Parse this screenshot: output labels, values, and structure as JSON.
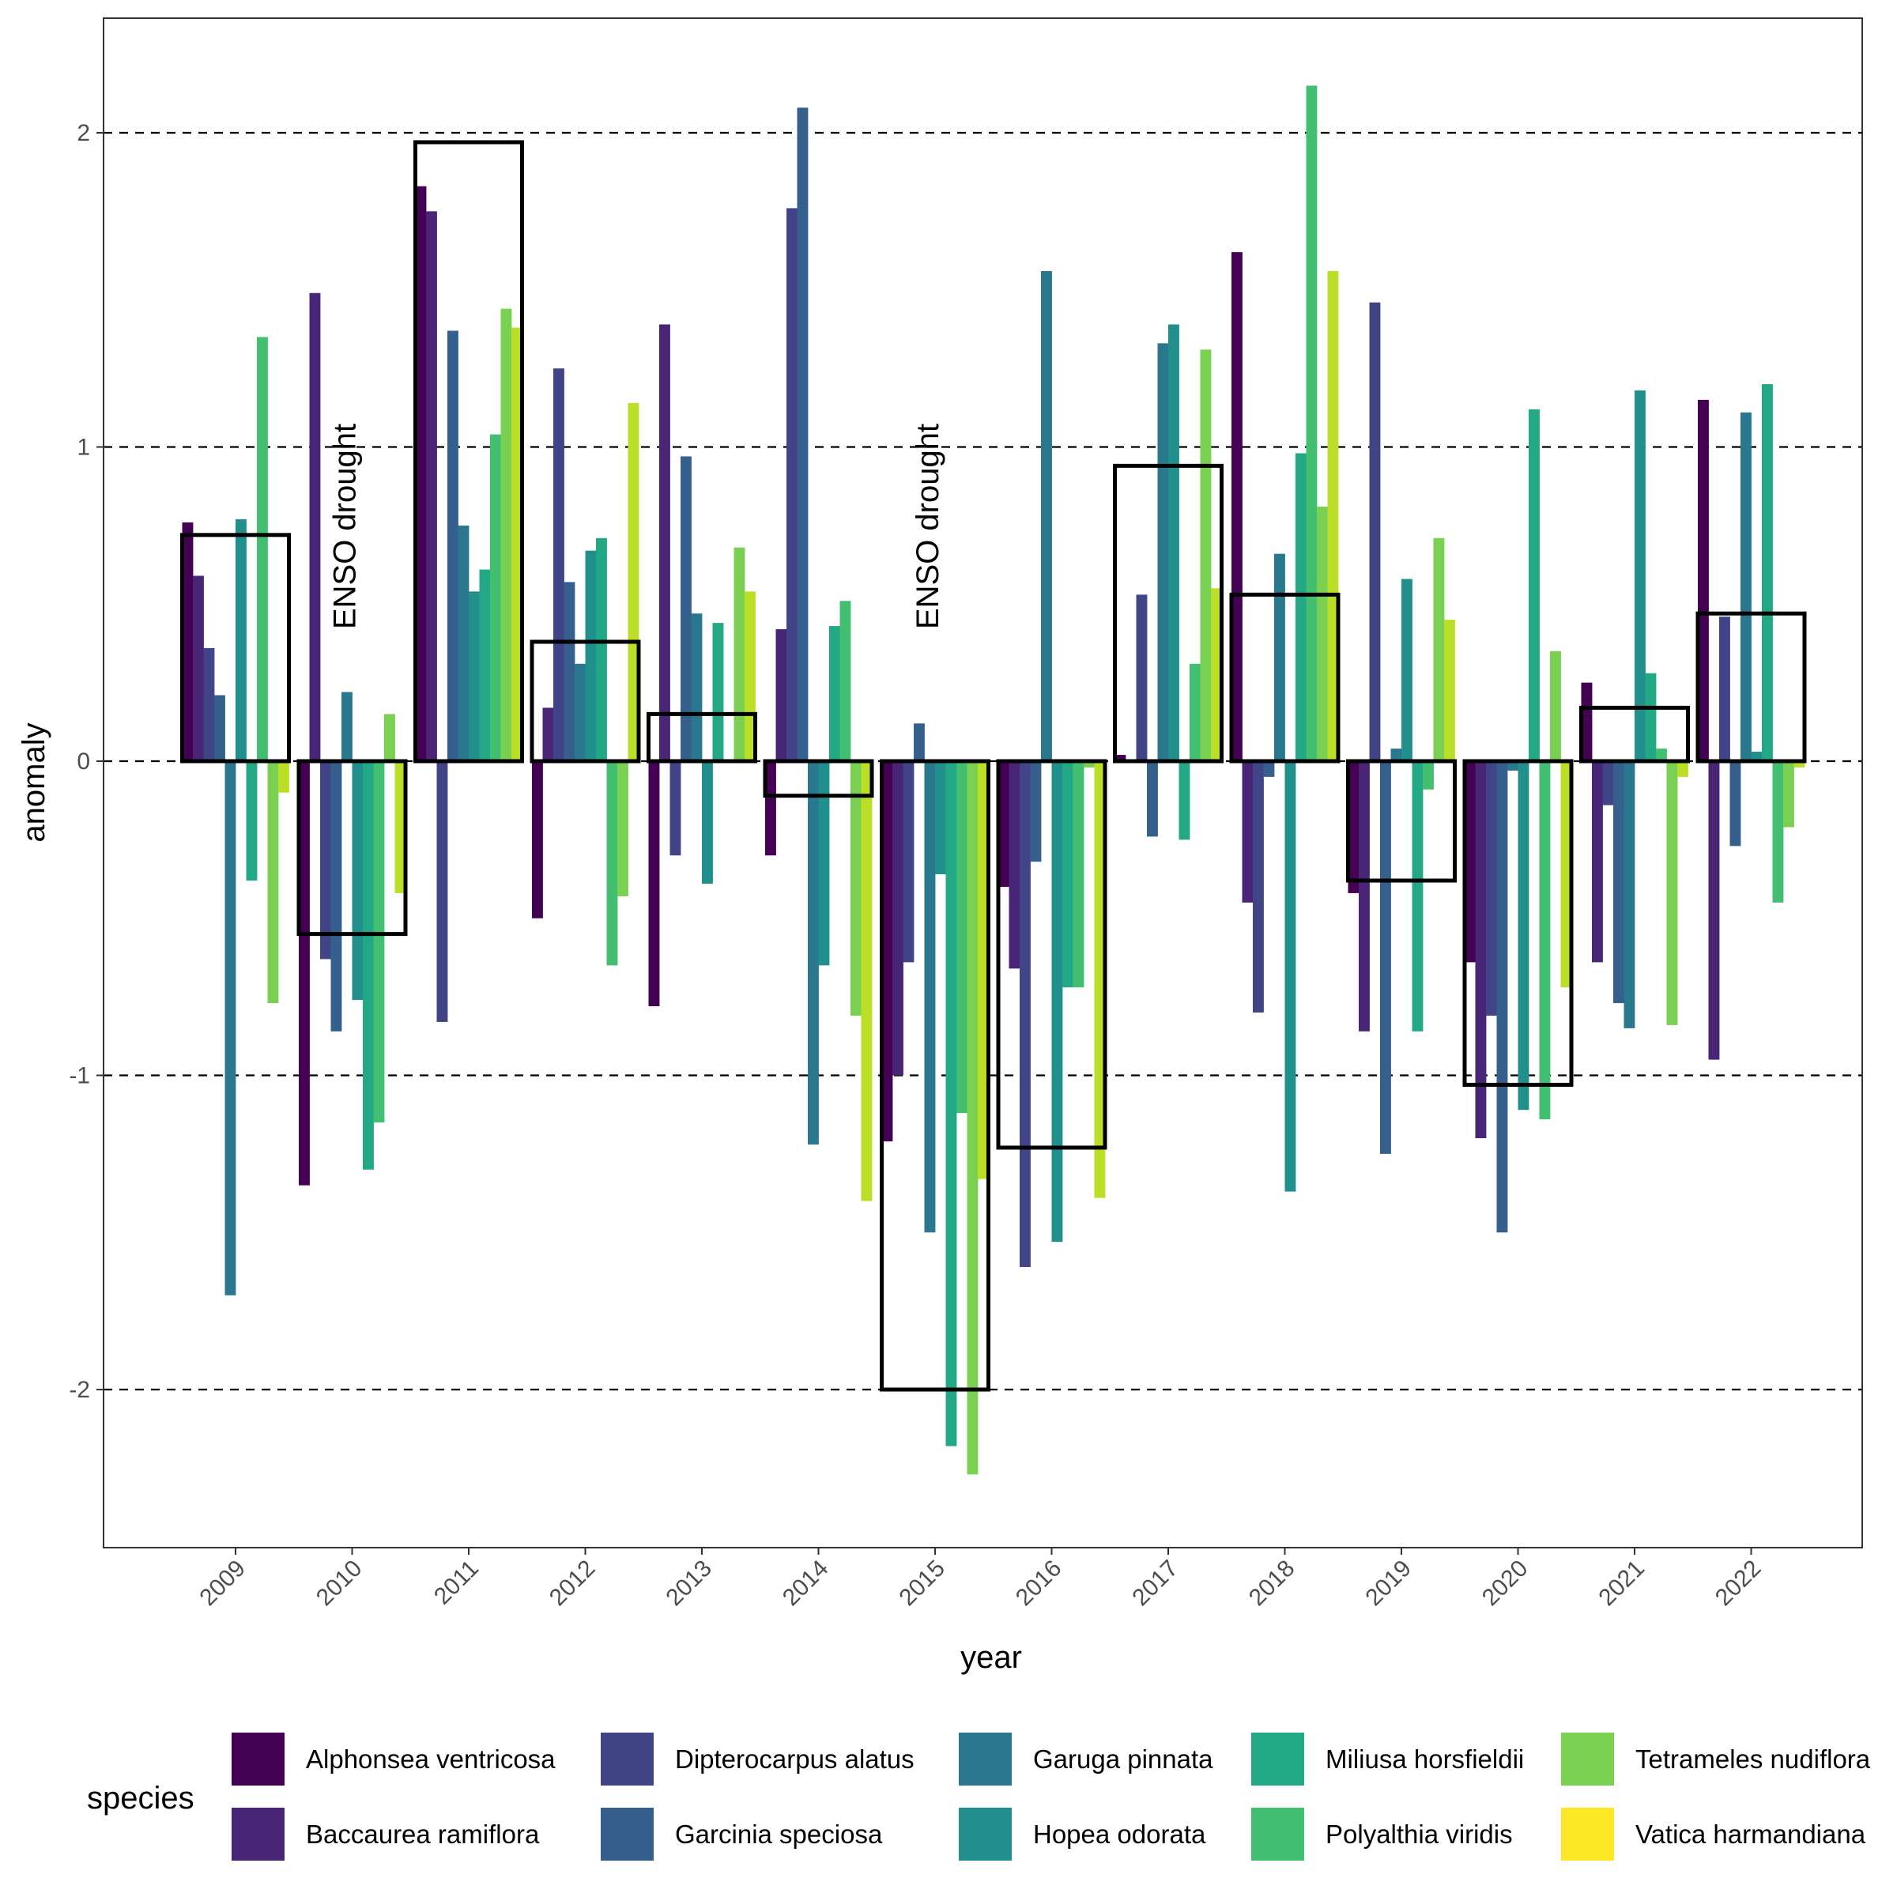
{
  "chart_data": {
    "type": "bar",
    "xlabel": "year",
    "ylabel": "anomaly",
    "ylim": [
      -2.5,
      2.35
    ],
    "yticks": [
      -2,
      -1,
      0,
      1,
      2
    ],
    "ytick_labels": [
      "-2",
      "-1",
      "0",
      "1",
      "2"
    ],
    "gridlines": "dashed at y = -2, -1, 0, 1, 2",
    "categories": [
      "2009",
      "2010",
      "2011",
      "2012",
      "2013",
      "2014",
      "2015",
      "2016",
      "2017",
      "2018",
      "2019",
      "2020",
      "2021",
      "2022"
    ],
    "legend_title": "species",
    "legend_position": "bottom",
    "series": [
      {
        "name": "Alphonsea ventricosa",
        "color": "#440154",
        "values": [
          0.76,
          -1.35,
          1.83,
          -0.5,
          -0.78,
          -0.3,
          -1.21,
          -0.4,
          0.02,
          1.62,
          -0.42,
          -0.64,
          0.25,
          1.15
        ]
      },
      {
        "name": "Baccaurea ramiflora",
        "color": "#482576",
        "values": [
          0.59,
          1.49,
          1.75,
          0.17,
          1.39,
          0.42,
          -1.0,
          -0.66,
          0.0,
          -0.45,
          -0.86,
          -1.2,
          -0.64,
          -0.95
        ]
      },
      {
        "name": "Dipterocarpus alatus",
        "color": "#414487",
        "values": [
          0.36,
          -0.63,
          -0.83,
          1.25,
          -0.3,
          1.76,
          -0.64,
          -1.61,
          0.53,
          -0.8,
          1.46,
          -0.81,
          -0.14,
          0.46
        ]
      },
      {
        "name": "Garcinia speciosa",
        "color": "#35608D",
        "values": [
          0.21,
          -0.86,
          1.37,
          0.57,
          0.97,
          2.08,
          0.12,
          -0.32,
          -0.24,
          -0.05,
          -1.25,
          -1.5,
          -0.77,
          -0.27
        ]
      },
      {
        "name": "Garuga pinnata",
        "color": "#2A788E",
        "values": [
          -1.7,
          0.22,
          0.75,
          0.31,
          0.47,
          -1.22,
          -1.5,
          1.56,
          1.33,
          0.66,
          0.04,
          -0.03,
          -0.85,
          1.11
        ]
      },
      {
        "name": "Hopea odorata",
        "color": "#21908C",
        "values": [
          0.77,
          -0.76,
          0.54,
          0.67,
          -0.39,
          -0.65,
          -0.36,
          -1.53,
          1.39,
          -1.37,
          0.58,
          -1.11,
          1.18,
          0.03
        ]
      },
      {
        "name": "Miliusa horsfieldii",
        "color": "#22A884",
        "values": [
          -0.38,
          -1.3,
          0.61,
          0.71,
          0.44,
          0.43,
          -2.18,
          -0.72,
          -0.25,
          0.98,
          -0.86,
          1.12,
          0.28,
          1.2
        ]
      },
      {
        "name": "Polyalthia viridis",
        "color": "#43BF71",
        "values": [
          1.35,
          -1.15,
          1.04,
          -0.65,
          0.0,
          0.51,
          -1.12,
          -0.72,
          0.31,
          2.15,
          -0.09,
          -1.14,
          0.04,
          -0.45
        ]
      },
      {
        "name": "Tetrameles nudiflora",
        "color": "#7AD151",
        "values": [
          -0.77,
          0.15,
          1.44,
          -0.43,
          0.68,
          -0.81,
          -2.27,
          -0.02,
          1.31,
          0.81,
          0.71,
          0.35,
          -0.84,
          -0.21
        ]
      },
      {
        "name": "Vatica harmandiana",
        "color": "#BBDF27",
        "values": [
          -0.1,
          -0.42,
          1.38,
          1.14,
          0.54,
          -1.4,
          -1.33,
          -1.39,
          0.55,
          1.56,
          0.45,
          -0.72,
          -0.05,
          -0.02
        ]
      }
    ],
    "extra_series_color": "#FDE725",
    "mean_boxes": {
      "description": "black outlined rectangle per year, from 0 to the year's mean anomaly",
      "values": [
        0.72,
        -0.55,
        1.97,
        0.38,
        0.15,
        -0.11,
        -2.0,
        -1.23,
        0.94,
        0.53,
        -0.38,
        -1.03,
        0.17,
        0.47
      ]
    },
    "annotations": [
      {
        "text": "ENSO drought",
        "year": "2010",
        "y": 0.42
      },
      {
        "text": "ENSO drought",
        "year": "2015",
        "y": 0.42
      }
    ],
    "legend_layout_note": "two rows"
  }
}
